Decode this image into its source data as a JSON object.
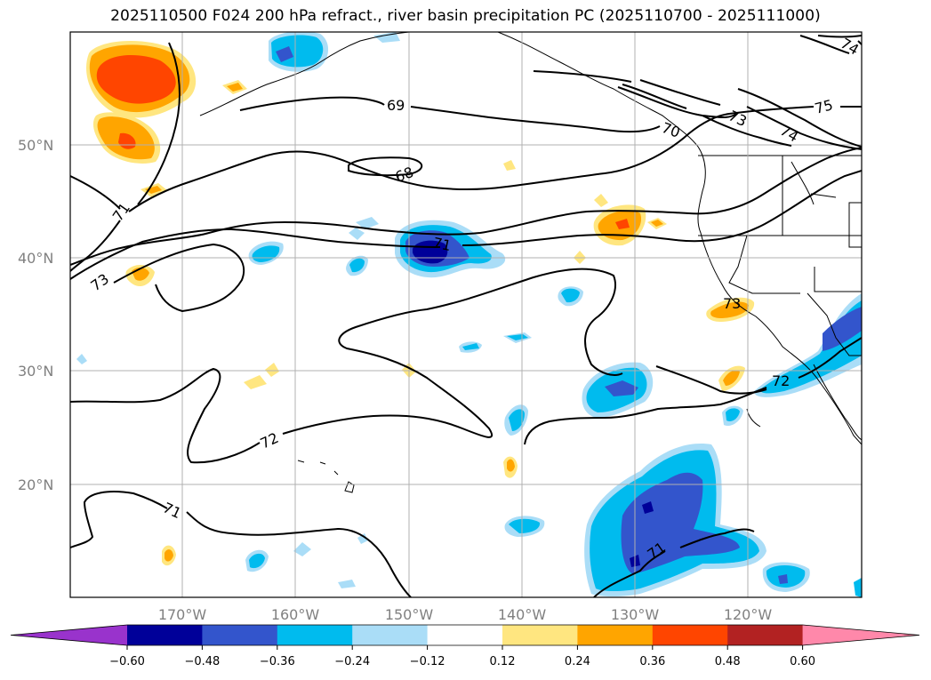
{
  "title": "2025110500 F024 200 hPa refract., river basin precipitation PC (2025110700 - 2025111000)",
  "lat_labels": [
    "50°N",
    "40°N",
    "30°N",
    "20°N"
  ],
  "lon_labels": [
    "170°W",
    "160°W",
    "150°W",
    "140°W",
    "130°W",
    "120°W"
  ],
  "colorbar": {
    "labels": [
      "−0.60",
      "−0.48",
      "−0.36",
      "−0.24",
      "−0.12",
      "0.12",
      "0.24",
      "0.36",
      "0.48",
      "0.60"
    ],
    "colors": [
      "#9933cc",
      "#000099",
      "#3355cc",
      "#00bbee",
      "#aaddf7",
      "#ffffff",
      "#ffe680",
      "#ffa500",
      "#ff4500",
      "#b22222",
      "#ff88aa"
    ]
  },
  "contour_labels": [
    "69",
    "68",
    "71",
    "71",
    "73",
    "72",
    "71",
    "71",
    "73",
    "72",
    "70",
    "73",
    "74",
    "75",
    "74"
  ],
  "colors": {
    "orange": "#ffa500",
    "red_orange": "#ff4500",
    "light_yellow": "#ffe680",
    "cyan": "#00bbee",
    "light_blue": "#aaddf7",
    "mid_blue": "#3355cc",
    "dark_blue": "#000099"
  }
}
